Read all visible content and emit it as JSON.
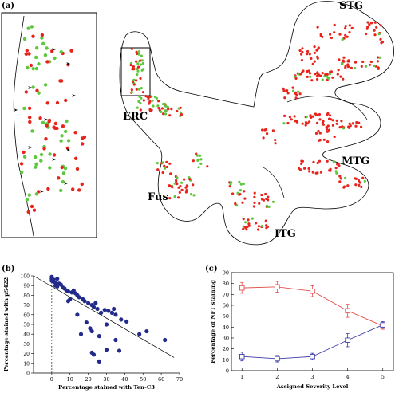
{
  "panel_a": {
    "label": "(a)",
    "regions": {
      "stg": "STG",
      "erc": "ERC",
      "mtg": "MTG",
      "fus": "Fus",
      "itg": "ITG"
    }
  },
  "panel_b": {
    "label": "(b)",
    "chart_data": {
      "type": "scatter",
      "xlabel": "Percentage stained with Ten-C3",
      "ylabel": "Percentage stained with pS422",
      "xlim": [
        -10,
        70
      ],
      "ylim": [
        0,
        100
      ],
      "xticks": [
        0,
        10,
        20,
        30,
        40,
        50,
        60,
        70
      ],
      "yticks": [
        0,
        10,
        20,
        30,
        40,
        50,
        60,
        70,
        80,
        90,
        100
      ],
      "points": [
        [
          0,
          99
        ],
        [
          0,
          97
        ],
        [
          1,
          96
        ],
        [
          0,
          95
        ],
        [
          1,
          94
        ],
        [
          2,
          93
        ],
        [
          3,
          97
        ],
        [
          4,
          92
        ],
        [
          2,
          90
        ],
        [
          5,
          91
        ],
        [
          3,
          89
        ],
        [
          6,
          88
        ],
        [
          7,
          87
        ],
        [
          8,
          85
        ],
        [
          9,
          84
        ],
        [
          11,
          83
        ],
        [
          12,
          85
        ],
        [
          13,
          82
        ],
        [
          14,
          80
        ],
        [
          15,
          78
        ],
        [
          10,
          76
        ],
        [
          9,
          74
        ],
        [
          17,
          76
        ],
        [
          18,
          74
        ],
        [
          20,
          72
        ],
        [
          22,
          70
        ],
        [
          24,
          72
        ],
        [
          23,
          68
        ],
        [
          25,
          66
        ],
        [
          27,
          62
        ],
        [
          29,
          65
        ],
        [
          31,
          64
        ],
        [
          33,
          62
        ],
        [
          35,
          60
        ],
        [
          30,
          50
        ],
        [
          14,
          60
        ],
        [
          34,
          66
        ],
        [
          38,
          55
        ],
        [
          41,
          53
        ],
        [
          19,
          52
        ],
        [
          21,
          46
        ],
        [
          22,
          43
        ],
        [
          16,
          40
        ],
        [
          26,
          38
        ],
        [
          35,
          34
        ],
        [
          48,
          40
        ],
        [
          52,
          43
        ],
        [
          62,
          34
        ],
        [
          22,
          21
        ],
        [
          23,
          19
        ],
        [
          30,
          24
        ],
        [
          37,
          23
        ],
        [
          26,
          12
        ]
      ],
      "trendline": [
        [
          -10,
          100
        ],
        [
          67,
          16
        ]
      ],
      "reference_line_x": 0
    }
  },
  "panel_c": {
    "label": "(c)",
    "chart_data": {
      "type": "line",
      "xlabel": "Assigned Severity Level",
      "ylabel": "Percentage of NFT staining",
      "x": [
        1,
        2,
        3,
        4,
        5
      ],
      "xlim": [
        0.7,
        5.3
      ],
      "ylim": [
        0,
        90
      ],
      "yticks": [
        0,
        10,
        20,
        30,
        40,
        50,
        60,
        70,
        80,
        90
      ],
      "series": [
        {
          "values": [
            76,
            77,
            73,
            55,
            41
          ],
          "errors": [
            5,
            5,
            5,
            6,
            3
          ],
          "color": "#e0504a"
        },
        {
          "values": [
            13,
            11,
            13,
            28,
            42
          ],
          "errors": [
            4,
            3,
            3,
            6,
            3
          ],
          "color": "#3b3ba8"
        }
      ]
    }
  }
}
